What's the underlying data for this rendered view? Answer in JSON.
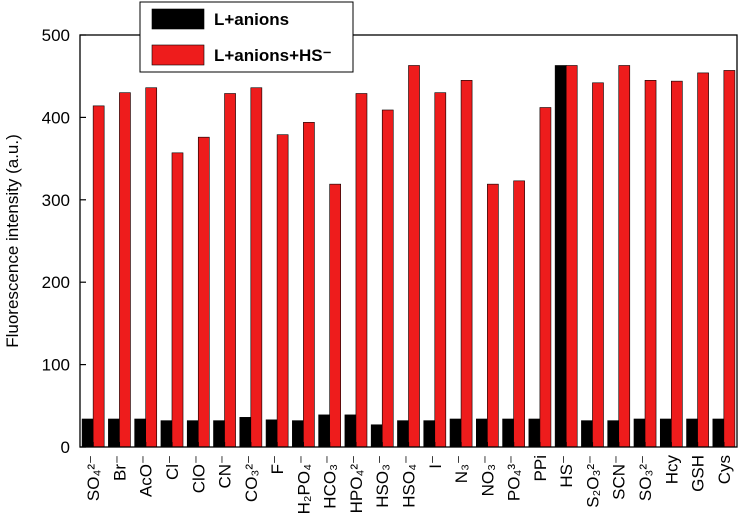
{
  "chart_data": {
    "type": "bar",
    "y_label": "Fluorescence intensity (a.u.)",
    "categories": [
      "SO₄²⁻",
      "Br⁻",
      "AcO⁻",
      "Cl⁻",
      "ClO⁻",
      "CN⁻",
      "CO₃²⁻",
      "F⁻",
      "H₂PO₄⁻",
      "HCO₃⁻",
      "HPO₄²⁻",
      "HSO₃⁻",
      "HSO₄⁻",
      "I⁻",
      "N₃⁻",
      "NO₃⁻",
      "PO₄³⁻",
      "PPi",
      "HS⁻",
      "S₂O₃²⁻",
      "SCN⁻",
      "SO₃²⁻",
      "Hcy",
      "GSH",
      "Cys"
    ],
    "series": [
      {
        "name": "L+anions",
        "color": "#000000",
        "values": [
          34,
          34,
          34,
          32,
          32,
          32,
          36,
          33,
          32,
          39,
          39,
          27,
          32,
          32,
          34,
          34,
          34,
          34,
          463,
          32,
          32,
          34,
          34,
          34,
          34
        ]
      },
      {
        "name": "L+anions+HS⁻",
        "color": "#ee1c1c",
        "values": [
          414,
          430,
          436,
          357,
          376,
          429,
          436,
          379,
          394,
          319,
          429,
          409,
          463,
          430,
          445,
          319,
          323,
          412,
          463,
          442,
          463,
          445,
          444,
          454,
          457
        ]
      }
    ],
    "ylim": [
      0,
      500
    ],
    "yticks": [
      0,
      100,
      200,
      300,
      400,
      500
    ]
  }
}
